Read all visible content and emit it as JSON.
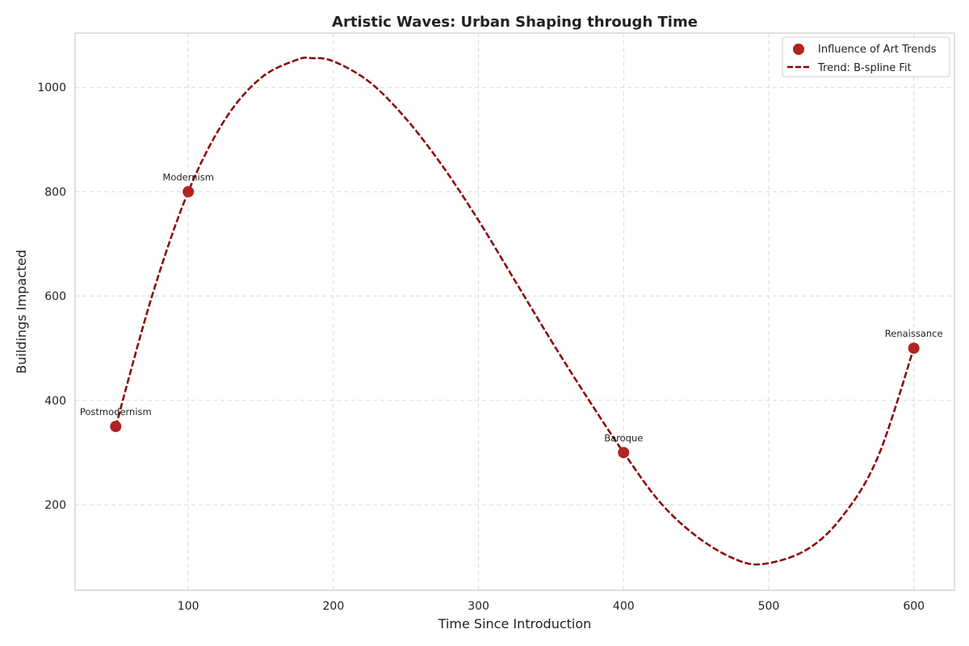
{
  "chart_data": {
    "type": "scatter",
    "title": "Artistic Waves: Urban Shaping through Time",
    "xlabel": "Time Since Introduction",
    "ylabel": "Buildings Impacted",
    "xlim": [
      22,
      628
    ],
    "ylim": [
      36,
      1104
    ],
    "x_ticks": [
      100,
      200,
      300,
      400,
      500,
      600
    ],
    "y_ticks": [
      200,
      400,
      600,
      800,
      1000
    ],
    "grid": true,
    "legend_position": "top-right",
    "series": [
      {
        "name": "Influence of Art Trends",
        "kind": "scatter",
        "color": "#b22222",
        "points": [
          {
            "x": 50,
            "y": 350,
            "label": "Postmodernism"
          },
          {
            "x": 100,
            "y": 800,
            "label": "Modernism"
          },
          {
            "x": 400,
            "y": 300,
            "label": "Baroque"
          },
          {
            "x": 600,
            "y": 500,
            "label": "Renaissance"
          }
        ]
      },
      {
        "name": "Trend: B-spline Fit",
        "kind": "line",
        "style": "dashed",
        "color": "#8b0000",
        "points": [
          {
            "x": 50,
            "y": 350
          },
          {
            "x": 75,
            "y": 600
          },
          {
            "x": 100,
            "y": 800
          },
          {
            "x": 125,
            "y": 937
          },
          {
            "x": 150,
            "y": 1018
          },
          {
            "x": 175,
            "y": 1053
          },
          {
            "x": 185,
            "y": 1056
          },
          {
            "x": 200,
            "y": 1050
          },
          {
            "x": 225,
            "y": 1010
          },
          {
            "x": 250,
            "y": 940
          },
          {
            "x": 275,
            "y": 850
          },
          {
            "x": 300,
            "y": 745
          },
          {
            "x": 325,
            "y": 630
          },
          {
            "x": 350,
            "y": 515
          },
          {
            "x": 375,
            "y": 405
          },
          {
            "x": 400,
            "y": 300
          },
          {
            "x": 425,
            "y": 205
          },
          {
            "x": 450,
            "y": 140
          },
          {
            "x": 475,
            "y": 98
          },
          {
            "x": 495,
            "y": 86
          },
          {
            "x": 525,
            "y": 112
          },
          {
            "x": 550,
            "y": 175
          },
          {
            "x": 575,
            "y": 290
          },
          {
            "x": 600,
            "y": 500
          }
        ]
      }
    ]
  }
}
